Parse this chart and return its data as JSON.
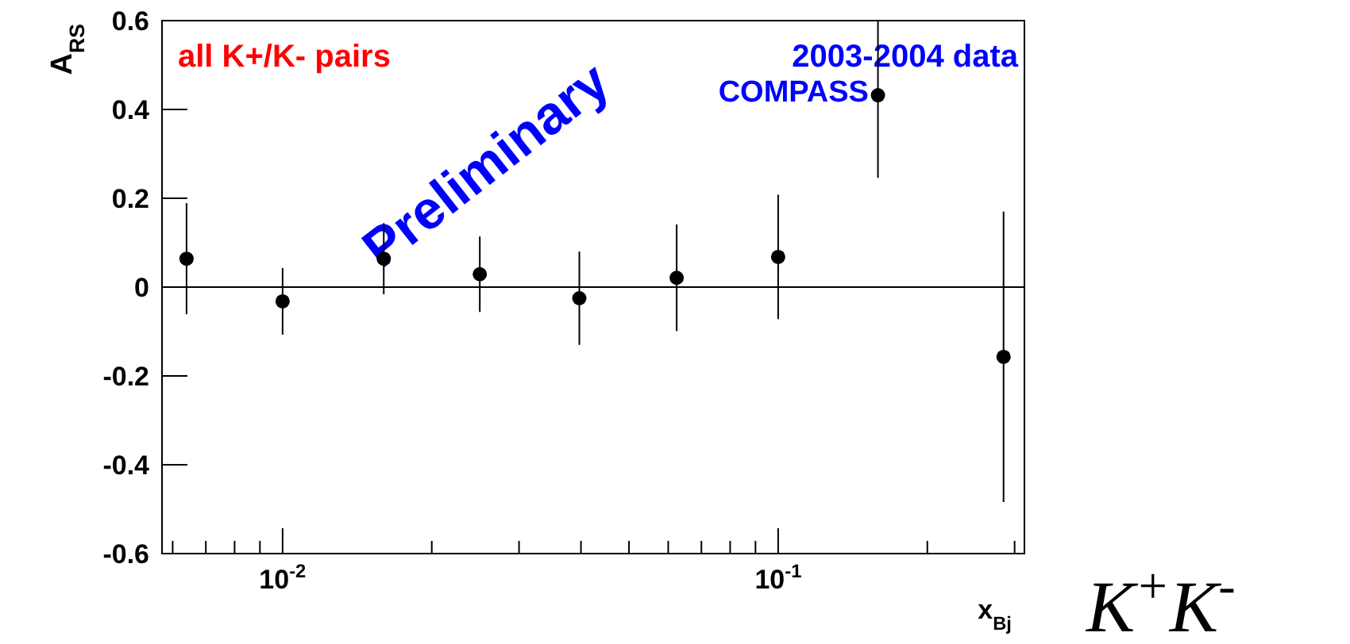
{
  "chart_data": {
    "type": "scatter",
    "xlabel": "x$_{Bj}$",
    "ylabel": "A$_{RS}$",
    "x": [
      0.0064,
      0.01,
      0.016,
      0.025,
      0.0397,
      0.0624,
      0.1,
      0.159,
      0.285
    ],
    "values": [
      0.064,
      -0.032,
      0.064,
      0.029,
      -0.025,
      0.021,
      0.068,
      0.432,
      -0.157
    ],
    "errors": [
      0.125,
      0.075,
      0.08,
      0.085,
      0.105,
      0.12,
      0.14,
      [
        0.246,
        0.6
      ],
      0.327
    ],
    "color": "#000000",
    "marker": "circle",
    "log": "x",
    "grid": false,
    "xlim": [
      0.00571,
      0.314
    ],
    "xticks": [
      {
        "value": 0.006,
        "label": null
      },
      {
        "value": 0.007,
        "label": null
      },
      {
        "value": 0.008,
        "label": null
      },
      {
        "value": 0.009,
        "label": null
      },
      {
        "value": 0.01,
        "label": "10$^{-2}$"
      },
      {
        "value": 0.02,
        "label": null
      },
      {
        "value": 0.03,
        "label": null
      },
      {
        "value": 0.04,
        "label": null
      },
      {
        "value": 0.05,
        "label": null
      },
      {
        "value": 0.06,
        "label": null
      },
      {
        "value": 0.07,
        "label": null
      },
      {
        "value": 0.08,
        "label": null
      },
      {
        "value": 0.09,
        "label": null
      },
      {
        "value": 0.1,
        "label": "10$^{-1}$"
      },
      {
        "value": 0.2,
        "label": null
      },
      {
        "value": 0.3,
        "label": null
      }
    ],
    "ylim": [
      -0.6,
      0.6
    ],
    "yticks": [
      -0.6,
      -0.4,
      -0.2,
      0,
      0.2,
      0.4,
      0.6
    ],
    "ref_lines": [
      {
        "axis": "y",
        "value": 0,
        "color": "#000000"
      }
    ],
    "annotations": [
      "all K+/K- pairs",
      "2003-2004 data",
      "COMPASS",
      "Preliminary",
      "K$^{+}$K$^{-}$"
    ]
  }
}
